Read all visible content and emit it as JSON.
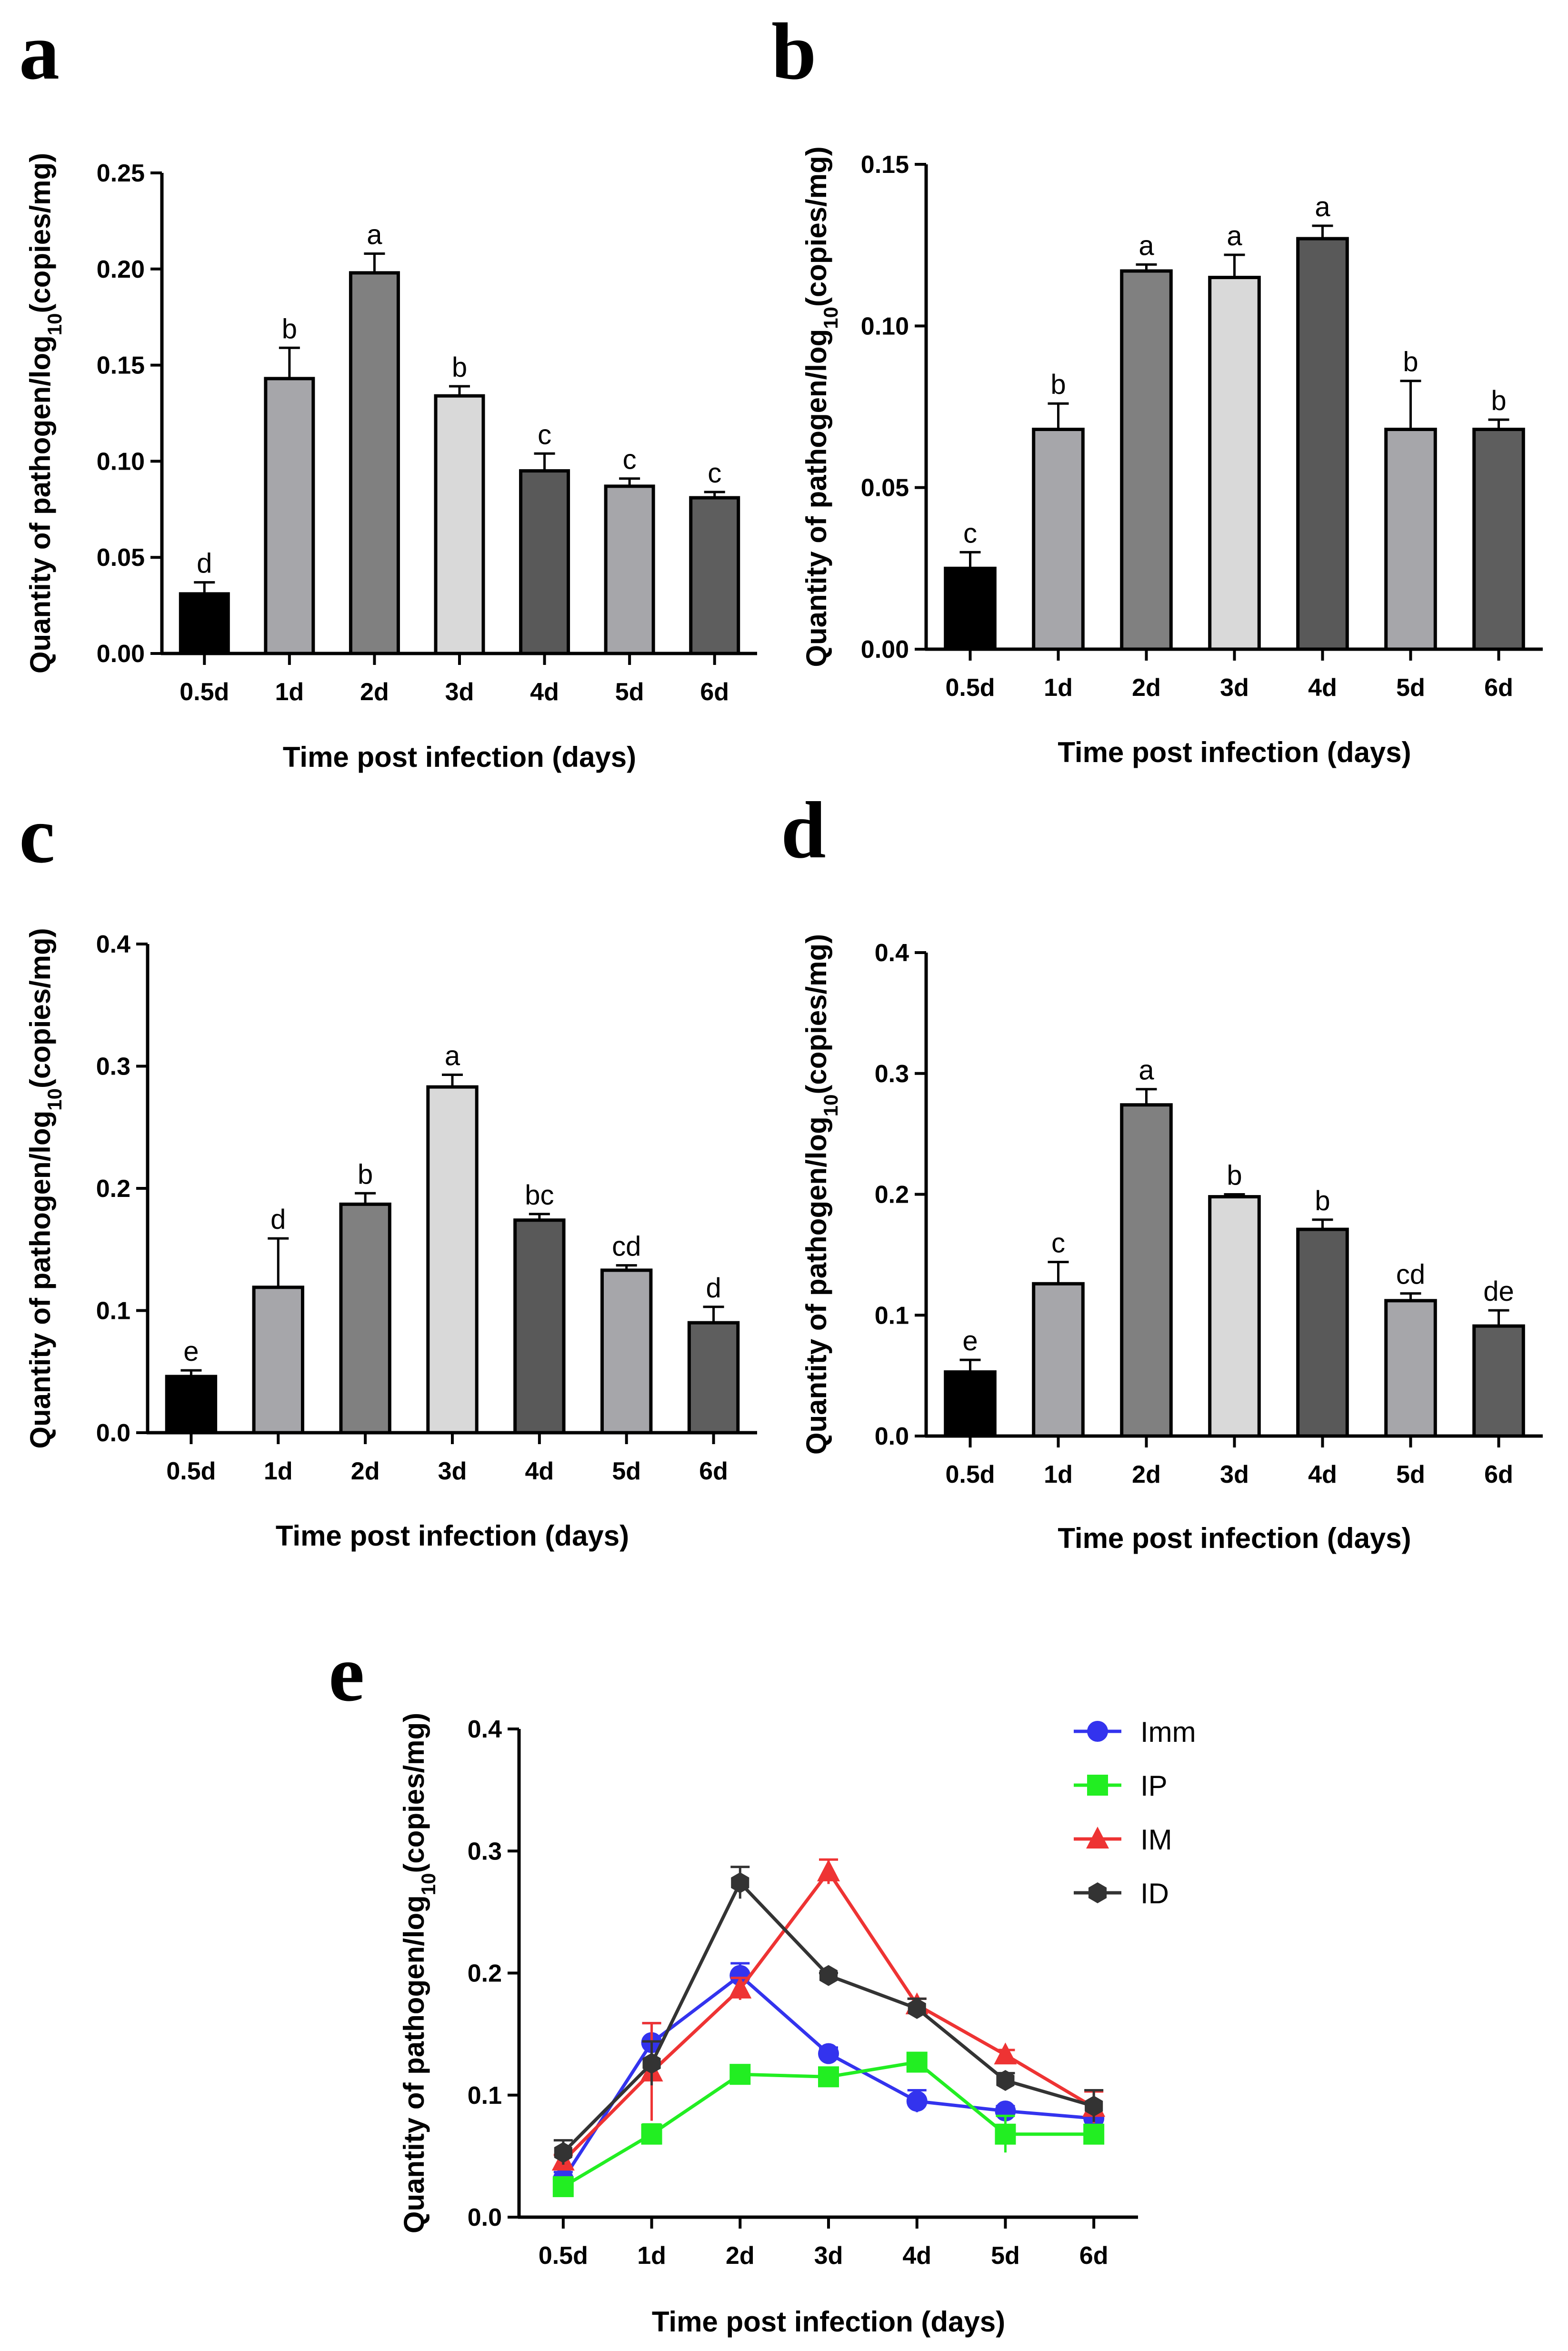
{
  "figure": {
    "background": "#ffffff"
  },
  "chart_data": [
    {
      "panel": "a",
      "type": "bar",
      "categories": [
        "0.5d",
        "1d",
        "2d",
        "3d",
        "4d",
        "5d",
        "6d"
      ],
      "values": [
        0.031,
        0.143,
        0.198,
        0.134,
        0.095,
        0.087,
        0.081
      ],
      "errors": [
        0.006,
        0.016,
        0.01,
        0.005,
        0.009,
        0.004,
        0.003
      ],
      "letters": [
        "d",
        "b",
        "a",
        "b",
        "c",
        "c",
        "c"
      ],
      "colors": [
        "#000000",
        "#a6a6aa",
        "#808080",
        "#d9d9d9",
        "#595959",
        "#a6a6aa",
        "#5e5e5e"
      ],
      "ylim": [
        0,
        0.25
      ],
      "yticks": [
        "0.00",
        "0.05",
        "0.10",
        "0.15",
        "0.20",
        "0.25"
      ],
      "xlabel": "Time post infection (days)",
      "ylabel": "Quantity of pathogen/log10(copies/mg)"
    },
    {
      "panel": "b",
      "type": "bar",
      "categories": [
        "0.5d",
        "1d",
        "2d",
        "3d",
        "4d",
        "5d",
        "6d"
      ],
      "values": [
        0.025,
        0.068,
        0.117,
        0.115,
        0.127,
        0.068,
        0.068
      ],
      "errors": [
        0.005,
        0.008,
        0.002,
        0.007,
        0.004,
        0.015,
        0.003
      ],
      "letters": [
        "c",
        "b",
        "a",
        "a",
        "a",
        "b",
        "b"
      ],
      "colors": [
        "#000000",
        "#a6a6aa",
        "#808080",
        "#d9d9d9",
        "#595959",
        "#a6a6aa",
        "#5e5e5e"
      ],
      "ylim": [
        0,
        0.15
      ],
      "yticks": [
        "0.00",
        "0.05",
        "0.10",
        "0.15"
      ],
      "xlabel": "Time post infection (days)",
      "ylabel": "Quantity of pathogen/log10(copies/mg)"
    },
    {
      "panel": "c",
      "type": "bar",
      "categories": [
        "0.5d",
        "1d",
        "2d",
        "3d",
        "4d",
        "5d",
        "6d"
      ],
      "values": [
        0.046,
        0.119,
        0.187,
        0.283,
        0.174,
        0.133,
        0.09
      ],
      "errors": [
        0.005,
        0.04,
        0.009,
        0.01,
        0.005,
        0.004,
        0.013
      ],
      "letters": [
        "e",
        "d",
        "b",
        "a",
        "bc",
        "cd",
        "d"
      ],
      "colors": [
        "#000000",
        "#a6a6aa",
        "#808080",
        "#d9d9d9",
        "#595959",
        "#a6a6aa",
        "#5e5e5e"
      ],
      "ylim": [
        0,
        0.4
      ],
      "yticks": [
        "0.0",
        "0.1",
        "0.2",
        "0.3",
        "0.4"
      ],
      "xlabel": "Time post infection (days)",
      "ylabel": "Quantity of pathogen/log10(copies/mg)"
    },
    {
      "panel": "d",
      "type": "bar",
      "categories": [
        "0.5d",
        "1d",
        "2d",
        "3d",
        "4d",
        "5d",
        "6d"
      ],
      "values": [
        0.053,
        0.126,
        0.274,
        0.198,
        0.171,
        0.112,
        0.091
      ],
      "errors": [
        0.01,
        0.018,
        0.013,
        0.002,
        0.008,
        0.006,
        0.013
      ],
      "letters": [
        "e",
        "c",
        "a",
        "b",
        "b",
        "cd",
        "de"
      ],
      "colors": [
        "#000000",
        "#a6a6aa",
        "#808080",
        "#d9d9d9",
        "#595959",
        "#a6a6aa",
        "#5e5e5e"
      ],
      "ylim": [
        0,
        0.4
      ],
      "yticks": [
        "0.0",
        "0.1",
        "0.2",
        "0.3",
        "0.4"
      ],
      "xlabel": "Time post infection (days)",
      "ylabel": "Quantity of pathogen/log10(copies/mg)"
    },
    {
      "panel": "e",
      "type": "line",
      "categories": [
        "0.5d",
        "1d",
        "2d",
        "3d",
        "4d",
        "5d",
        "6d"
      ],
      "series": [
        {
          "name": "Imm",
          "marker": "circle",
          "color": "#3333ee",
          "values": [
            0.031,
            0.143,
            0.198,
            0.134,
            0.095,
            0.087,
            0.081
          ],
          "errors": [
            0.006,
            0.016,
            0.01,
            0.005,
            0.009,
            0.004,
            0.003
          ]
        },
        {
          "name": "IP",
          "marker": "square",
          "color": "#22ee22",
          "values": [
            0.025,
            0.068,
            0.117,
            0.115,
            0.127,
            0.068,
            0.068
          ],
          "errors": [
            0.005,
            0.008,
            0.002,
            0.007,
            0.004,
            0.015,
            0.003
          ]
        },
        {
          "name": "IM",
          "marker": "triangle",
          "color": "#ee3333",
          "values": [
            0.046,
            0.119,
            0.187,
            0.283,
            0.174,
            0.133,
            0.09
          ],
          "errors": [
            0.005,
            0.04,
            0.009,
            0.01,
            0.005,
            0.004,
            0.013
          ]
        },
        {
          "name": "ID",
          "marker": "hexagon",
          "color": "#333333",
          "values": [
            0.053,
            0.126,
            0.274,
            0.198,
            0.171,
            0.112,
            0.091
          ],
          "errors": [
            0.01,
            0.018,
            0.013,
            0.002,
            0.008,
            0.006,
            0.013
          ]
        }
      ],
      "legend_position": "top-right",
      "ylim": [
        0,
        0.4
      ],
      "yticks": [
        "0.0",
        "0.1",
        "0.2",
        "0.3",
        "0.4"
      ],
      "xlabel": "Time post infection (days)",
      "ylabel": "Quantity of pathogen/log10(copies/mg)"
    }
  ]
}
